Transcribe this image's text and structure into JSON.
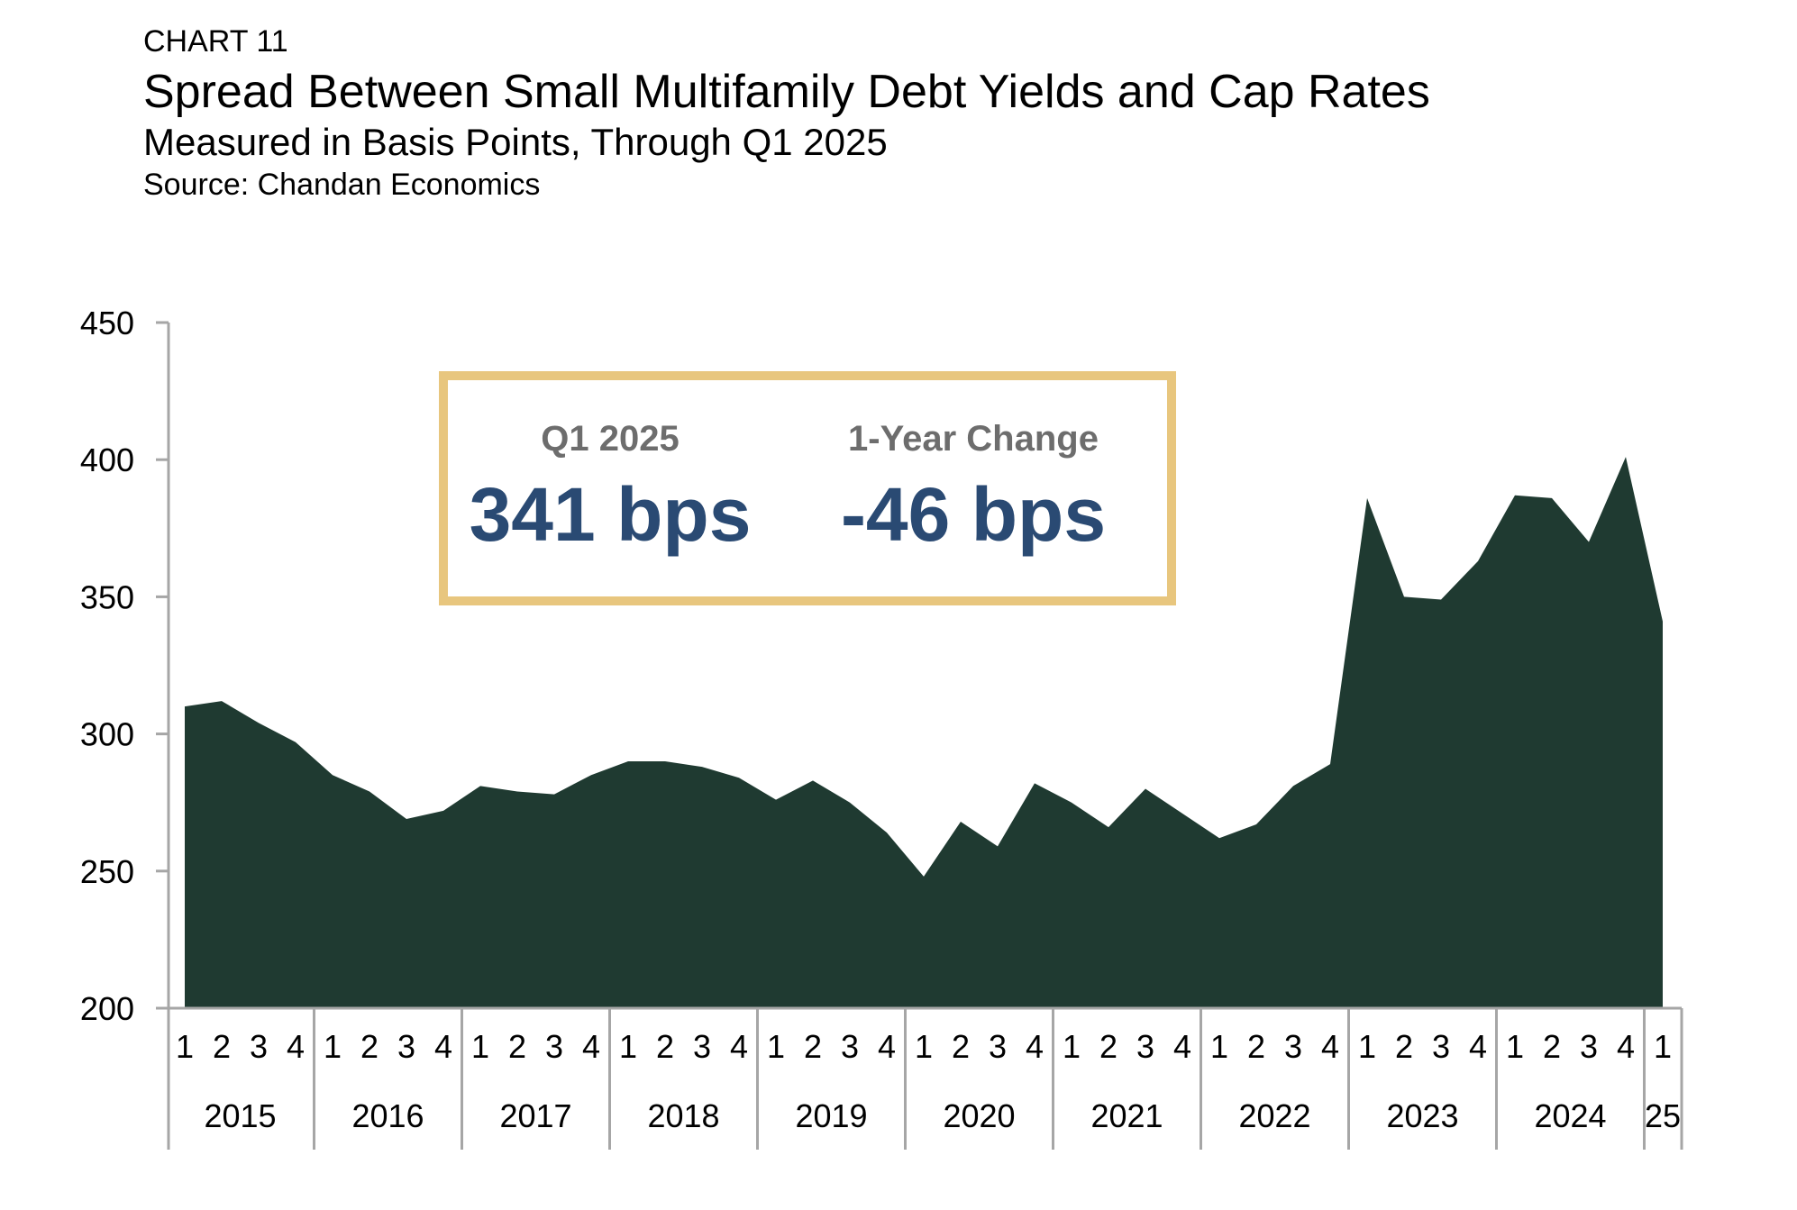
{
  "header": {
    "label": "CHART 11",
    "title": "Spread Between Small Multifamily Debt Yields and Cap Rates",
    "subtitle": "Measured in Basis Points, Through Q1 2025",
    "source": "Source: Chandan Economics"
  },
  "colors": {
    "area_fill": "#1f3a31",
    "axis": "#a6a6a6",
    "callout_border": "#e8c67e",
    "callout_label": "#6d6d6d",
    "callout_value": "#2a4a73"
  },
  "callout": {
    "items": [
      {
        "label": "Q1 2025",
        "value": "341 bps"
      },
      {
        "label": "1-Year Change",
        "value": "-46 bps"
      }
    ]
  },
  "chart_data": {
    "type": "area",
    "title": "Spread Between Small Multifamily Debt Yields and Cap Rates",
    "subtitle": "Measured in Basis Points, Through Q1 2025",
    "source": "Source: Chandan Economics",
    "xlabel": "",
    "ylabel": "",
    "ylim": [
      200,
      450
    ],
    "yticks": [
      200,
      250,
      300,
      350,
      400,
      450
    ],
    "grid": false,
    "legend": "none",
    "quarter_labels": [
      "1",
      "2",
      "3",
      "4",
      "1",
      "2",
      "3",
      "4",
      "1",
      "2",
      "3",
      "4",
      "1",
      "2",
      "3",
      "4",
      "1",
      "2",
      "3",
      "4",
      "1",
      "2",
      "3",
      "4",
      "1",
      "2",
      "3",
      "4",
      "1",
      "2",
      "3",
      "4",
      "1",
      "2",
      "3",
      "4",
      "1",
      "2",
      "3",
      "4",
      "1"
    ],
    "year_groups": [
      {
        "label": "2015",
        "quarters": 4
      },
      {
        "label": "2016",
        "quarters": 4
      },
      {
        "label": "2017",
        "quarters": 4
      },
      {
        "label": "2018",
        "quarters": 4
      },
      {
        "label": "2019",
        "quarters": 4
      },
      {
        "label": "2020",
        "quarters": 4
      },
      {
        "label": "2021",
        "quarters": 4
      },
      {
        "label": "2022",
        "quarters": 4
      },
      {
        "label": "2023",
        "quarters": 4
      },
      {
        "label": "2024",
        "quarters": 4
      },
      {
        "label": "25",
        "quarters": 1
      }
    ],
    "values": [
      310,
      312,
      304,
      297,
      285,
      279,
      269,
      272,
      281,
      279,
      278,
      285,
      290,
      290,
      288,
      284,
      276,
      283,
      275,
      264,
      248,
      268,
      259,
      282,
      275,
      266,
      280,
      271,
      262,
      267,
      281,
      289,
      386,
      350,
      349,
      363,
      387,
      386,
      370,
      401,
      341
    ]
  }
}
